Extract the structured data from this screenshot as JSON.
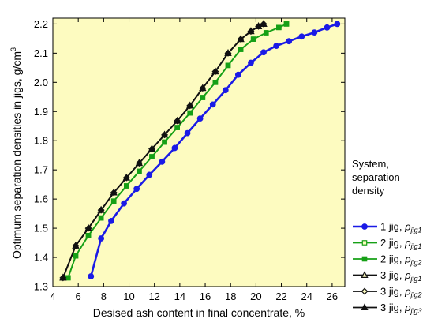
{
  "chart_data": {
    "type": "line",
    "xlabel": "Desised ash content in final concentrate,   %",
    "ylabel": "Optimum separation densities in jigs,   g/cm",
    "ylabel_sup": "3",
    "xlim": [
      4,
      27
    ],
    "ylim": [
      1.3,
      2.22
    ],
    "xticks": [
      4,
      6,
      8,
      10,
      12,
      14,
      16,
      18,
      20,
      22,
      24,
      26
    ],
    "yticks": [
      1.3,
      1.4,
      1.5,
      1.6,
      1.7,
      1.8,
      1.9,
      2.0,
      2.1,
      2.2
    ],
    "grid": false,
    "background": "#fdfbc0",
    "legend": {
      "placement": "right",
      "title_lines": [
        "System,",
        "separation",
        "density"
      ]
    },
    "series": [
      {
        "label_text": "1 jig, ",
        "label_rho": "ρ",
        "label_sub": "jig1",
        "color": "#1a1ae6",
        "marker": "circle",
        "x": [
          7.0,
          7.8,
          8.6,
          9.6,
          10.6,
          11.6,
          12.6,
          13.6,
          14.6,
          15.6,
          16.6,
          17.6,
          18.6,
          19.6,
          20.6,
          21.6,
          22.6,
          23.6,
          24.6,
          25.6,
          26.4
        ],
        "y": [
          1.335,
          1.465,
          1.525,
          1.585,
          1.635,
          1.683,
          1.728,
          1.775,
          1.826,
          1.876,
          1.924,
          1.973,
          2.026,
          2.067,
          2.103,
          2.125,
          2.141,
          2.157,
          2.171,
          2.188,
          2.2
        ]
      },
      {
        "label_text": "2 jig, ",
        "label_rho": "ρ",
        "label_sub": "jig1",
        "color": "#16a016",
        "marker": "square-open",
        "x": [
          5.2,
          5.8,
          6.8,
          7.8,
          8.8,
          9.8,
          10.8,
          11.8,
          12.8,
          13.8,
          14.8,
          15.8,
          16.8,
          17.8,
          18.8,
          19.8,
          20.8,
          21.8,
          22.4
        ],
        "y": [
          1.33,
          1.405,
          1.475,
          1.535,
          1.593,
          1.645,
          1.695,
          1.745,
          1.795,
          1.845,
          1.895,
          1.948,
          2.0,
          2.058,
          2.113,
          2.148,
          2.17,
          2.188,
          2.2
        ]
      },
      {
        "label_text": "2 jig, ",
        "label_rho": "ρ",
        "label_sub": "jig2",
        "color": "#16a016",
        "marker": "square",
        "x": [
          5.2,
          5.8,
          6.8,
          7.8,
          8.8,
          9.8,
          10.8,
          11.8,
          12.8,
          13.8,
          14.8,
          15.8,
          16.8,
          17.8,
          18.8,
          19.8,
          20.8,
          21.8,
          22.4
        ],
        "y": [
          1.33,
          1.405,
          1.475,
          1.535,
          1.593,
          1.645,
          1.695,
          1.745,
          1.795,
          1.845,
          1.895,
          1.948,
          2.0,
          2.058,
          2.113,
          2.148,
          2.17,
          2.188,
          2.2
        ]
      },
      {
        "label_text": "3 jig, ",
        "label_rho": "ρ",
        "label_sub": "jig1",
        "color": "#111111",
        "marker": "triangle-open",
        "x": [
          4.8,
          5.8,
          6.8,
          7.8,
          8.8,
          9.8,
          10.8,
          11.8,
          12.8,
          13.8,
          14.8,
          15.8,
          16.8,
          17.8,
          18.8,
          19.6,
          20.2,
          20.6
        ],
        "y": [
          1.33,
          1.44,
          1.5,
          1.562,
          1.622,
          1.673,
          1.723,
          1.772,
          1.82,
          1.868,
          1.92,
          1.98,
          2.037,
          2.1,
          2.148,
          2.175,
          2.192,
          2.2
        ]
      },
      {
        "label_text": "3 jig, ",
        "label_rho": "ρ",
        "label_sub": "jig2",
        "color": "#111111",
        "marker": "diamond-open",
        "x": [
          4.8,
          5.8,
          6.8,
          7.8,
          8.8,
          9.8,
          10.8,
          11.8,
          12.8,
          13.8,
          14.8,
          15.8,
          16.8,
          17.8,
          18.8,
          19.6,
          20.2,
          20.6
        ],
        "y": [
          1.33,
          1.44,
          1.5,
          1.562,
          1.622,
          1.673,
          1.723,
          1.772,
          1.82,
          1.868,
          1.92,
          1.98,
          2.037,
          2.1,
          2.148,
          2.175,
          2.192,
          2.2
        ]
      },
      {
        "label_text": "3 jig, ",
        "label_rho": "ρ",
        "label_sub": "jig3",
        "color": "#111111",
        "marker": "triangle",
        "x": [
          4.8,
          5.8,
          6.8,
          7.8,
          8.8,
          9.8,
          10.8,
          11.8,
          12.8,
          13.8,
          14.8,
          15.8,
          16.8,
          17.8,
          18.8,
          19.6,
          20.2,
          20.6
        ],
        "y": [
          1.33,
          1.44,
          1.5,
          1.562,
          1.622,
          1.673,
          1.723,
          1.772,
          1.82,
          1.868,
          1.92,
          1.98,
          2.037,
          2.1,
          2.148,
          2.175,
          2.192,
          2.2
        ]
      }
    ]
  }
}
